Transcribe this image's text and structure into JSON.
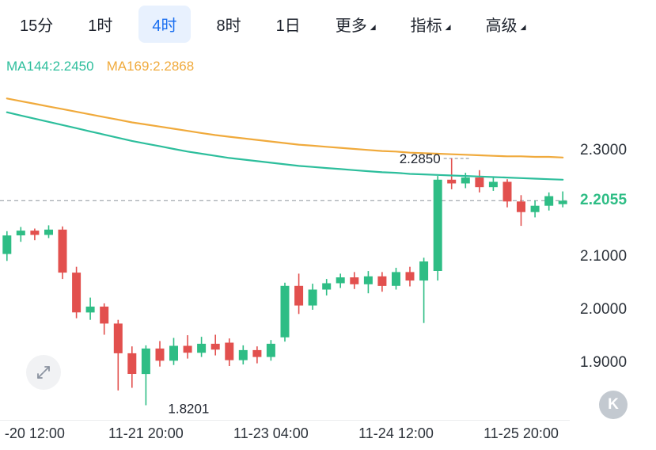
{
  "toolbar": {
    "tabs": [
      {
        "label": "15分",
        "active": false
      },
      {
        "label": "1时",
        "active": false
      },
      {
        "label": "4时",
        "active": true
      },
      {
        "label": "8时",
        "active": false
      },
      {
        "label": "1日",
        "active": false
      },
      {
        "label": "更多",
        "active": false,
        "dropdown": true
      },
      {
        "label": "指标",
        "active": false,
        "dropdown": true
      },
      {
        "label": "高级",
        "active": false,
        "dropdown": true
      }
    ]
  },
  "legend": {
    "ma144": {
      "label": "MA144:2.2450"
    },
    "ma169": {
      "label": "MA169:2.2868"
    }
  },
  "icons": {
    "toolbar_settings": "chart-settings-gear",
    "dropdown_caret": "triangle-lower-right",
    "expand": "expand-diagonal-arrows"
  },
  "watermark": {
    "label": "K"
  },
  "colors": {
    "up": "#2EBD85",
    "down": "#E2504E",
    "ma144": "#2DBE9C",
    "ma169": "#F0AA3C",
    "current_price": "#2EBD85",
    "active_tab": "#1B6FF0",
    "active_tab_bg": "#E8F1FE",
    "dashed_line": "#9AA0A8",
    "axis_text": "#2B3139"
  },
  "chart_data": {
    "type": "candlestick",
    "timeframe": "4时",
    "ylim": [
      1.7925,
      2.494
    ],
    "current_price": 2.2055,
    "current_price_label": "2.2055",
    "y_ticks": [
      {
        "value": 2.3,
        "label": "2.3000"
      },
      {
        "value": 2.1,
        "label": "2.1000"
      },
      {
        "value": 2.0,
        "label": "2.0000"
      },
      {
        "value": 1.9,
        "label": "1.9000"
      }
    ],
    "x_labels": [
      {
        "index": 2,
        "text": "-20 12:00"
      },
      {
        "index": 10,
        "text": "11-21 20:00"
      },
      {
        "index": 19,
        "text": "11-23 04:00"
      },
      {
        "index": 28,
        "text": "11-24 12:00"
      },
      {
        "index": 37,
        "text": "11-25 20:00"
      }
    ],
    "high_annotation": {
      "index": 32,
      "price": 2.285,
      "label": "2.2850"
    },
    "low_annotation": {
      "index": 10,
      "price": 1.8201,
      "label": "1.8201"
    },
    "candles": [
      [
        2.105,
        2.148,
        2.092,
        2.14
      ],
      [
        2.14,
        2.156,
        2.128,
        2.149
      ],
      [
        2.149,
        2.153,
        2.131,
        2.141
      ],
      [
        2.141,
        2.159,
        2.135,
        2.151
      ],
      [
        2.151,
        2.157,
        2.058,
        2.07
      ],
      [
        2.07,
        2.081,
        1.984,
        1.995
      ],
      [
        1.995,
        2.023,
        1.981,
        2.006
      ],
      [
        2.006,
        2.012,
        1.953,
        1.974
      ],
      [
        1.974,
        1.981,
        1.848,
        1.918
      ],
      [
        1.918,
        1.931,
        1.853,
        1.879
      ],
      [
        1.879,
        1.933,
        1.8201,
        1.927
      ],
      [
        1.927,
        1.941,
        1.893,
        1.904
      ],
      [
        1.904,
        1.947,
        1.896,
        1.932
      ],
      [
        1.932,
        1.952,
        1.908,
        1.919
      ],
      [
        1.919,
        1.949,
        1.911,
        1.936
      ],
      [
        1.936,
        1.953,
        1.914,
        1.925
      ],
      [
        1.938,
        1.946,
        1.894,
        1.905
      ],
      [
        1.905,
        1.933,
        1.897,
        1.924
      ],
      [
        1.924,
        1.931,
        1.899,
        1.911
      ],
      [
        1.911,
        1.943,
        1.904,
        1.936
      ],
      [
        1.948,
        2.051,
        1.94,
        2.045
      ],
      [
        2.045,
        2.068,
        1.992,
        2.008
      ],
      [
        2.008,
        2.049,
        2.0,
        2.038
      ],
      [
        2.038,
        2.058,
        2.027,
        2.05
      ],
      [
        2.05,
        2.068,
        2.041,
        2.061
      ],
      [
        2.061,
        2.071,
        2.039,
        2.048
      ],
      [
        2.048,
        2.073,
        2.031,
        2.063
      ],
      [
        2.063,
        2.071,
        2.034,
        2.045
      ],
      [
        2.045,
        2.079,
        2.038,
        2.071
      ],
      [
        2.071,
        2.081,
        2.044,
        2.055
      ],
      [
        2.055,
        2.098,
        1.975,
        2.091
      ],
      [
        2.073,
        2.252,
        2.055,
        2.245
      ],
      [
        2.245,
        2.285,
        2.227,
        2.238
      ],
      [
        2.238,
        2.258,
        2.229,
        2.249
      ],
      [
        2.249,
        2.263,
        2.221,
        2.231
      ],
      [
        2.231,
        2.251,
        2.224,
        2.241
      ],
      [
        2.241,
        2.246,
        2.193,
        2.204
      ],
      [
        2.204,
        2.216,
        2.158,
        2.184
      ],
      [
        2.184,
        2.206,
        2.174,
        2.196
      ],
      [
        2.196,
        2.221,
        2.187,
        2.214
      ],
      [
        2.199,
        2.223,
        2.193,
        2.2055
      ]
    ],
    "ma169": [
      2.398,
      2.393,
      2.388,
      2.383,
      2.378,
      2.373,
      2.368,
      2.363,
      2.358,
      2.353,
      2.349,
      2.345,
      2.341,
      2.337,
      2.333,
      2.329,
      2.326,
      2.323,
      2.32,
      2.317,
      2.314,
      2.311,
      2.309,
      2.307,
      2.305,
      2.303,
      2.301,
      2.299,
      2.298,
      2.296,
      2.295,
      2.294,
      2.293,
      2.292,
      2.291,
      2.29,
      2.289,
      2.289,
      2.288,
      2.288,
      2.2868
    ],
    "ma144": [
      2.372,
      2.366,
      2.36,
      2.354,
      2.348,
      2.342,
      2.336,
      2.33,
      2.324,
      2.318,
      2.313,
      2.308,
      2.303,
      2.298,
      2.294,
      2.29,
      2.286,
      2.283,
      2.28,
      2.277,
      2.274,
      2.271,
      2.269,
      2.267,
      2.265,
      2.263,
      2.261,
      2.259,
      2.258,
      2.256,
      2.255,
      2.254,
      2.253,
      2.252,
      2.251,
      2.25,
      2.249,
      2.248,
      2.247,
      2.246,
      2.245
    ]
  }
}
